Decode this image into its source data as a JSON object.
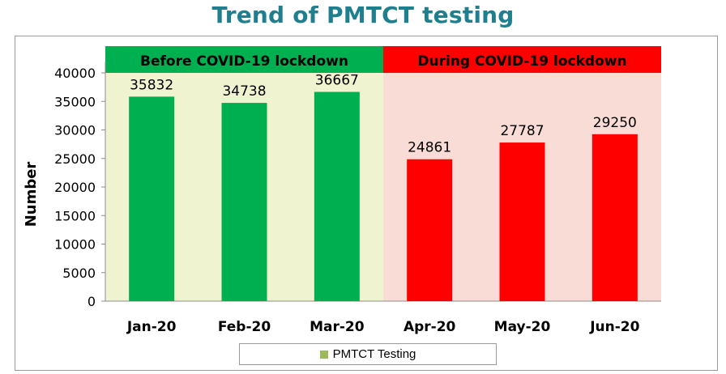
{
  "title": "Trend of PMTCT testing",
  "colors": {
    "title": "#1f7f8e",
    "before_bar": "#00b050",
    "during_bar": "#ff0000",
    "before_bg": "#f0f3d0",
    "during_bg": "#f9dcd6",
    "legend_swatch": "#9bbb59"
  },
  "chart_data": {
    "type": "bar",
    "categories": [
      "Jan-20",
      "Feb-20",
      "Mar-20",
      "Apr-20",
      "May-20",
      "Jun-20"
    ],
    "series": [
      {
        "name": "PMTCT Testing",
        "values": [
          35832,
          34738,
          36667,
          24861,
          27787,
          29250
        ]
      }
    ],
    "ylabel": "Number",
    "xlabel": "",
    "ylim": [
      0,
      40000
    ],
    "yticks": [
      0,
      5000,
      10000,
      15000,
      20000,
      25000,
      30000,
      35000,
      40000
    ],
    "grid": false,
    "legend": "bottom",
    "periods": [
      {
        "label": "Before COVID-19 lockdown",
        "categories": [
          "Jan-20",
          "Feb-20",
          "Mar-20"
        ]
      },
      {
        "label": "During COVID-19 lockdown",
        "categories": [
          "Apr-20",
          "May-20",
          "Jun-20"
        ]
      }
    ]
  }
}
